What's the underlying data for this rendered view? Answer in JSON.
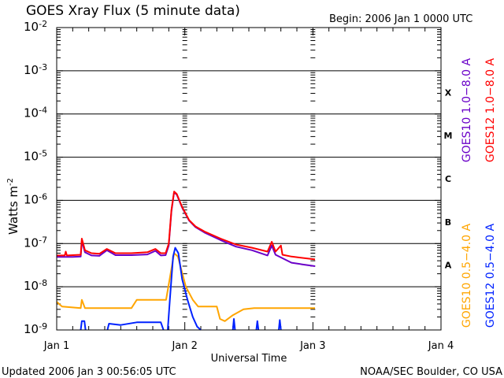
{
  "chart_data": {
    "type": "line",
    "title": "GOES Xray Flux (5 minute data)",
    "begin_label": "Begin:  2006 Jan 1 0000 UTC",
    "xlabel": "Universal Time",
    "ylabel": "Watts m",
    "ylabel_exp": "-2",
    "yscale": "log",
    "ylim": [
      1e-09,
      0.01
    ],
    "xlim_hours": [
      0,
      72
    ],
    "x_ticks": [
      {
        "hour": 0,
        "label": "Jan 1"
      },
      {
        "hour": 24,
        "label": "Jan 2"
      },
      {
        "hour": 48,
        "label": "Jan 3"
      },
      {
        "hour": 72,
        "label": "Jan 4"
      }
    ],
    "y_ticks": [
      {
        "exp": -9,
        "label": "10",
        "sup": "-9"
      },
      {
        "exp": -8,
        "label": "10",
        "sup": "-8"
      },
      {
        "exp": -7,
        "label": "10",
        "sup": "-7"
      },
      {
        "exp": -6,
        "label": "10",
        "sup": "-6"
      },
      {
        "exp": -5,
        "label": "10",
        "sup": "-5"
      },
      {
        "exp": -4,
        "label": "10",
        "sup": "-4"
      },
      {
        "exp": -3,
        "label": "10",
        "sup": "-3"
      },
      {
        "exp": -2,
        "label": "10",
        "sup": "-2"
      }
    ],
    "flare_classes": [
      {
        "exp": -7.5,
        "label": "A"
      },
      {
        "exp": -6.5,
        "label": "B"
      },
      {
        "exp": -5.5,
        "label": "C"
      },
      {
        "exp": -4.5,
        "label": "M"
      },
      {
        "exp": -3.5,
        "label": "X"
      }
    ],
    "grid": "horizontal at decades",
    "legend_placement": "right, rotated",
    "series": [
      {
        "name": "GOES10 1.0-8.0 A",
        "legend": "GOES10 1.0−8.0 A",
        "color": "#6a00c8",
        "group": "long",
        "segments": [
          [
            [
              0,
              4.9e-08
            ],
            [
              3,
              4.9e-08
            ],
            [
              4.5,
              5e-08
            ],
            [
              4.7,
              1.15e-07
            ],
            [
              5.3,
              6.3e-08
            ],
            [
              6.5,
              5.3e-08
            ],
            [
              8,
              5.2e-08
            ],
            [
              9.4,
              7e-08
            ],
            [
              11,
              5.4e-08
            ],
            [
              14,
              5.4e-08
            ],
            [
              17,
              5.6e-08
            ],
            [
              18.5,
              6.8e-08
            ],
            [
              19.5,
              5.3e-08
            ],
            [
              20.4,
              5.4e-08
            ],
            [
              21,
              9e-08
            ],
            [
              21.5,
              5.6e-07
            ],
            [
              22,
              1.55e-06
            ],
            [
              22.5,
              1.35e-06
            ],
            [
              23.5,
              6.8e-07
            ],
            [
              24.8,
              3.4e-07
            ],
            [
              26,
              2.4e-07
            ],
            [
              27.7,
              1.8e-07
            ],
            [
              30.7,
              1.2e-07
            ],
            [
              33.6,
              8.5e-08
            ],
            [
              36.6,
              7e-08
            ],
            [
              39.5,
              5.3e-08
            ],
            [
              40.3,
              9e-08
            ],
            [
              41,
              5.5e-08
            ],
            [
              44,
              3.6e-08
            ],
            [
              46,
              3.3e-08
            ],
            [
              48.4,
              3e-08
            ]
          ]
        ]
      },
      {
        "name": "GOES12 1.0-8.0 A",
        "legend": "GOES12 1.0−8.0 A",
        "color": "#ff0000",
        "group": "long",
        "segments": [
          [
            [
              0,
              5.3e-08
            ],
            [
              1.5,
              5.3e-08
            ],
            [
              1.7,
              6.5e-08
            ],
            [
              1.9,
              5.3e-08
            ],
            [
              4.5,
              5.5e-08
            ],
            [
              4.7,
              1.3e-07
            ],
            [
              5.3,
              7e-08
            ],
            [
              6.5,
              6e-08
            ],
            [
              8,
              5.8e-08
            ],
            [
              9.4,
              7.5e-08
            ],
            [
              11,
              6e-08
            ],
            [
              14,
              6e-08
            ],
            [
              17,
              6.3e-08
            ],
            [
              18.5,
              7.5e-08
            ],
            [
              19.5,
              6e-08
            ],
            [
              20.4,
              6e-08
            ],
            [
              21,
              1e-07
            ],
            [
              21.5,
              6e-07
            ],
            [
              22,
              1.6e-06
            ],
            [
              22.5,
              1.4e-06
            ],
            [
              23.5,
              7e-07
            ],
            [
              24.8,
              3.5e-07
            ],
            [
              26,
              2.5e-07
            ],
            [
              27.7,
              1.9e-07
            ],
            [
              30.7,
              1.3e-07
            ],
            [
              33.6,
              9.5e-08
            ],
            [
              36.6,
              8e-08
            ],
            [
              39.5,
              6.5e-08
            ],
            [
              40.3,
              1.1e-07
            ],
            [
              41,
              6.5e-08
            ],
            [
              42,
              9e-08
            ],
            [
              42.3,
              5.5e-08
            ],
            [
              44,
              5e-08
            ],
            [
              48.4,
              4.3e-08
            ]
          ]
        ]
      },
      {
        "name": "GOES10 0.5-4.0 A",
        "legend": "GOES10 0.5−4.0 A",
        "color": "#ffa500",
        "group": "short",
        "segments": [
          [
            [
              0,
              4.5e-09
            ],
            [
              1,
              3.5e-09
            ],
            [
              4.5,
              3.2e-09
            ],
            [
              4.7,
              5e-09
            ],
            [
              5.3,
              3.2e-09
            ],
            [
              14,
              3.2e-09
            ],
            [
              15,
              5e-09
            ],
            [
              20.5,
              5e-09
            ],
            [
              21.2,
              1.6e-08
            ],
            [
              22,
              6e-08
            ],
            [
              22.7,
              5e-08
            ],
            [
              24.2,
              1e-08
            ],
            [
              25.5,
              5e-09
            ],
            [
              26.5,
              3.5e-09
            ],
            [
              30,
              3.5e-09
            ],
            [
              30.6,
              1.8e-09
            ],
            [
              31.5,
              1.6e-09
            ],
            [
              33,
              2.2e-09
            ],
            [
              35,
              3e-09
            ],
            [
              37,
              3.2e-09
            ],
            [
              48.4,
              3.2e-09
            ]
          ]
        ]
      },
      {
        "name": "GOES12 0.5-4.0 A",
        "legend": "GOES12 0.5−4.0 A",
        "color": "#0022ff",
        "group": "short",
        "segments": [
          [
            [
              4.5,
              1e-09
            ],
            [
              4.7,
              1.6e-09
            ],
            [
              5.2,
              1.6e-09
            ],
            [
              5.4,
              1e-09
            ]
          ],
          [
            [
              9.5,
              1e-09
            ],
            [
              9.8,
              1.4e-09
            ],
            [
              12,
              1.3e-09
            ],
            [
              15,
              1.5e-09
            ],
            [
              19.5,
              1.5e-09
            ],
            [
              20,
              1e-09
            ]
          ],
          [
            [
              20.8,
              1e-09
            ],
            [
              21.2,
              5e-09
            ],
            [
              21.8,
              5e-08
            ],
            [
              22.2,
              8e-08
            ],
            [
              22.8,
              6e-08
            ],
            [
              23.5,
              1.5e-08
            ],
            [
              24.5,
              5e-09
            ],
            [
              25.5,
              2e-09
            ],
            [
              26.3,
              1.2e-09
            ],
            [
              27,
              1e-09
            ]
          ],
          [
            [
              33,
              1e-09
            ],
            [
              33.2,
              1.8e-09
            ],
            [
              33.4,
              1e-09
            ]
          ],
          [
            [
              37.4,
              1e-09
            ],
            [
              37.6,
              1.6e-09
            ],
            [
              37.8,
              1e-09
            ]
          ],
          [
            [
              41.6,
              1e-09
            ],
            [
              41.8,
              1.7e-09
            ],
            [
              42,
              1e-09
            ]
          ]
        ]
      }
    ]
  },
  "footer": {
    "updated": "Updated 2006 Jan  3 00:56:05 UTC",
    "source": "NOAA/SEC Boulder, CO USA"
  }
}
